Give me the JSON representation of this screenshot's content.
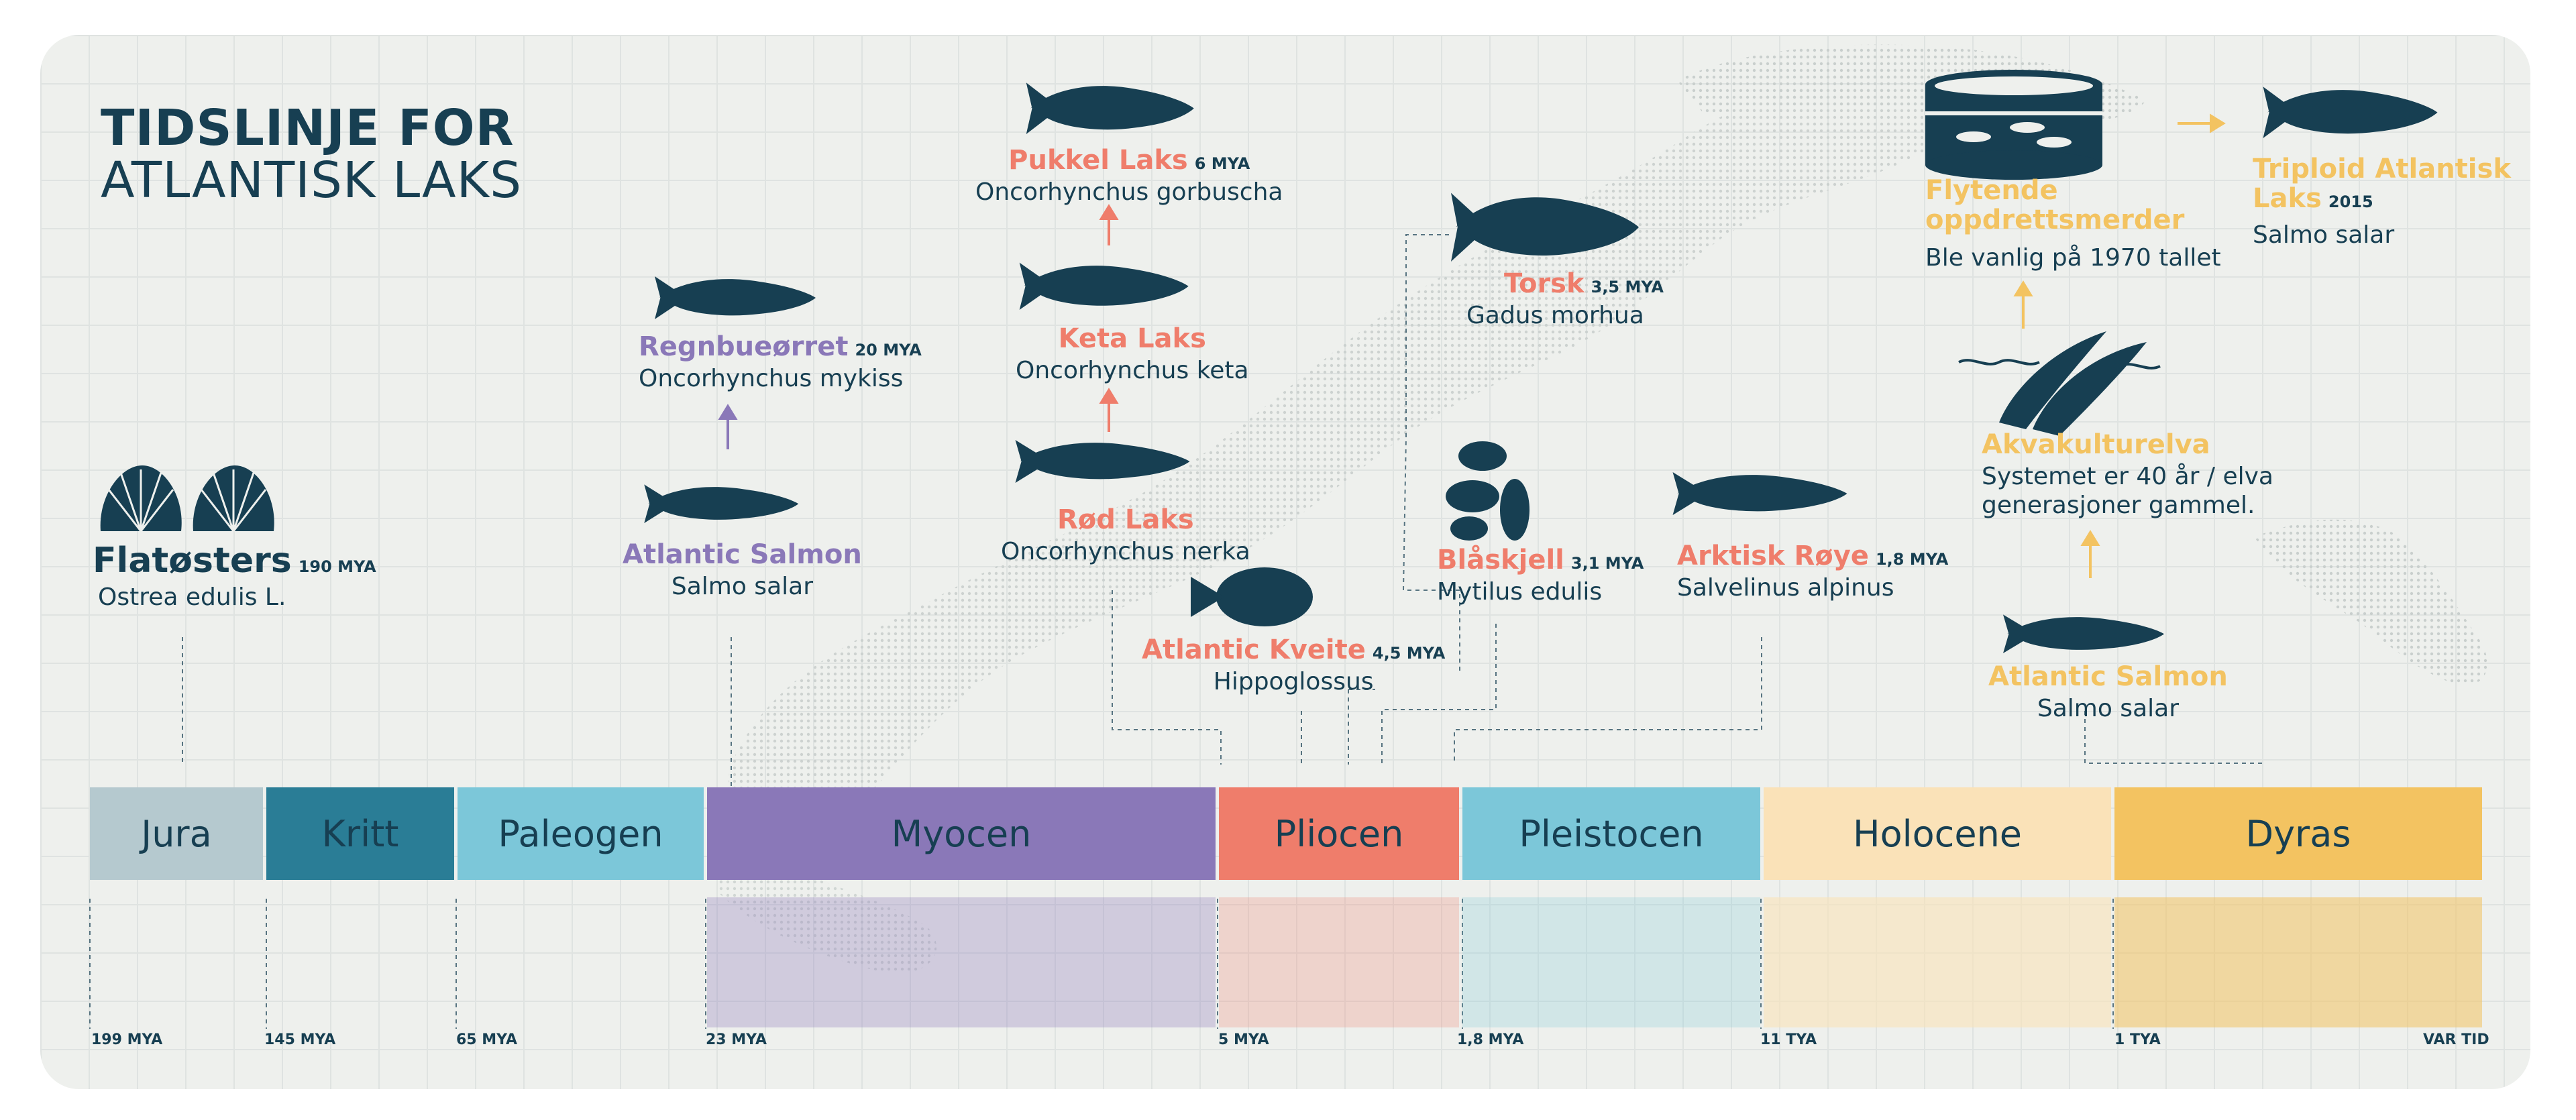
{
  "title": {
    "line1": "TIDSLINJE FOR",
    "line2": "ATLANTISK LAKS"
  },
  "colors": {
    "navy": "#173f52",
    "purple": "#8a78b8",
    "coral": "#ef7d6b",
    "gold": "#f3c361",
    "background": "#eef0ed"
  },
  "eras": [
    {
      "label": "Jura",
      "color": "#b5c9cf"
    },
    {
      "label": "Kritt",
      "color": "#2a7d96"
    },
    {
      "label": "Paleogen",
      "color": "#7cc7d9"
    },
    {
      "label": "Myocen",
      "color": "#8a78b8"
    },
    {
      "label": "Pliocen",
      "color": "#ef7d6b"
    },
    {
      "label": "Pleistocen",
      "color": "#7cc7d9"
    },
    {
      "label": "Holocene",
      "color": "#fae2b8"
    },
    {
      "label": "Dyras",
      "color": "#f3c361"
    }
  ],
  "ticks": [
    "199 MYA",
    "145 MYA",
    "65 MYA",
    "23 MYA",
    "5 MYA",
    "1,8 MYA",
    "11 TYA",
    "1 TYA",
    "VAR TID"
  ],
  "species": {
    "flatosters": {
      "name": "Flatøsters",
      "mya": "190 MYA",
      "sci": "Ostrea edulis L.",
      "icon": "scallop-icon"
    },
    "regnbue": {
      "name": "Regnbueørret",
      "mya": "20 MYA",
      "sci": "Oncorhynchus mykiss",
      "icon": "trout-icon"
    },
    "atlantic1": {
      "name": "Atlantic Salmon",
      "sci": "Salmo salar",
      "icon": "salmon-icon"
    },
    "pukkel": {
      "name": "Pukkel Laks",
      "mya": "6 MYA",
      "sci": "Oncorhynchus gorbuscha",
      "icon": "humpback-salmon-icon"
    },
    "keta": {
      "name": "Keta Laks",
      "sci": "Oncorhynchus keta",
      "icon": "chum-salmon-icon"
    },
    "rod": {
      "name": "Rød Laks",
      "sci": "Oncorhynchus nerka",
      "icon": "sockeye-salmon-icon"
    },
    "kveite": {
      "name": "Atlantic Kveite",
      "mya": "4,5 MYA",
      "sci": "Hippoglossus",
      "icon": "halibut-icon"
    },
    "torsk": {
      "name": "Torsk",
      "mya": "3,5 MYA",
      "sci": "Gadus morhua",
      "icon": "cod-icon"
    },
    "blaskjell": {
      "name": "Blåskjell",
      "mya": "3,1 MYA",
      "sci": "Mytilus edulis",
      "icon": "mussel-icon"
    },
    "royе": {
      "name": "",
      "sci": ""
    },
    "roye": {
      "name": "Arktisk Røye",
      "mya": "1,8 MYA",
      "sci": "Salvelinus alpinus",
      "icon": "char-icon"
    },
    "merder": {
      "name_line1": "Flytende",
      "name_line2": "oppdrettsmerder",
      "desc": "Ble vanlig på 1970 tallet",
      "icon": "fish-pen-icon"
    },
    "triploid": {
      "name_line1": "Triploid Atlantisk",
      "name_line2": "Laks",
      "year": "2015",
      "sci": "Salmo salar",
      "icon": "salmon-icon"
    },
    "akva": {
      "name": "Akvakulturelva",
      "desc_line1": "Systemet er 40 år / elva",
      "desc_line2": "generasjoner gammel.",
      "icon": "jumping-salmon-icon"
    },
    "atlantic2": {
      "name": "Atlantic Salmon",
      "sci": "Salmo salar",
      "icon": "salmon-icon"
    }
  }
}
